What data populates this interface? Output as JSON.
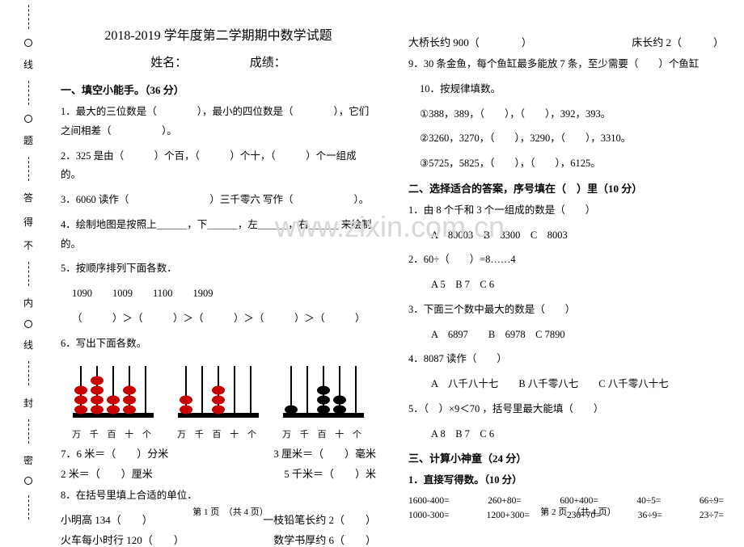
{
  "binding": {
    "chars": [
      "线",
      "题",
      "答",
      "得",
      "不",
      "内",
      "线",
      "封",
      "密"
    ]
  },
  "title": "2018-2019 学年度第二学期期中数学试题",
  "subtitle_name": "姓名：",
  "subtitle_score": "成绩：",
  "section1": "一、填空小能手。（36 分）",
  "q1": "1．最大的三位数是（　　　　），最小的四位数是（　　　　），它们之间相差（　　　　　）。",
  "q2": "2．325 是由（　　　）个百，（　　　）个十，（　　　）个一组成的。",
  "q3": "3．6060 读作（　　　　　　　　）三千零六 写作（　　　　　　）。",
  "q4": "4．绘制地图是按照上＿＿＿，下＿＿＿，左＿＿＿，右＿＿＿ 来绘制的。",
  "q5": "5．按顺序排列下面各数．",
  "q5nums": "1090　　1009　　1100　　1909",
  "q5cmp": "（　　　）＞（　　　）＞（　　　）＞（　　　）＞（　　　）",
  "q6": "6．写出下面各数。",
  "abacus_label": "万 千 百 十 个",
  "q7a": "7．6 米＝（　　）分米",
  "q7b": "3 厘米＝（　　）毫米",
  "q7c": "2 米＝（　　）厘米",
  "q7d": "5 千米＝（　　）米",
  "q8": "8．在括号里填上合适的单位．",
  "q8a": "小明高 134（　　）",
  "q8b": "一枝铅笔长约 2（　　）",
  "q8c": "火车每小时行 120（　　）",
  "q8d": "数学书厚约 6（　　）",
  "footer1": "第 1 页　（共 4 页）",
  "q8e": "大桥长约 900（　　　　）",
  "q8f": "床长约 2（　　　）",
  "q9": "9．30 条金鱼，每个鱼缸最多能放 7 条，至少需要（　　）个鱼缸",
  "q10": "10．按规律填数。",
  "q10a": "①388，389，（　　），（　　），392，393。",
  "q10b": "②3260，3270，（　　），3290，（　　），3310。",
  "q10c": "③5725，5825，（　　），（　　），6125。",
  "section2": "二、选择适合的答案，序号填在（　）里（10 分）",
  "s2q1": "1．由 8 个千和 3 个一组成的数是（　　）",
  "s2q1opt": "A　80003　B　8300　C　8003",
  "s2q2": "2．60÷（　　）=8……4",
  "s2q2opt": "A 5　B 7　C 6",
  "s2q3": "3．下面三个数中最大的数是（　　）",
  "s2q3opt": "A　6897　　B　6978　C 7890",
  "s2q4": "4．8087 读作（　　）",
  "s2q4opt": "A　八千八十七　　B 八千零八七　　C 八千零八十七",
  "s2q5": "5．（　）×9＜70 ，括号里最大能填（　　）",
  "s2q5opt": "A 8　B 7　C 6",
  "section3": "三、计算小神童（24 分）",
  "section3a": "1．直接写得数。（10 分）",
  "calc_r1": [
    "1600-400=",
    "260+80=",
    "600+400=",
    "40÷5=",
    "66÷9="
  ],
  "calc_r2": [
    "1000-300=",
    "1200+300=",
    "230+70=",
    "36÷9=",
    "23÷7="
  ],
  "footer2": "第 2 页　（共 4 页）",
  "watermark": "www.zixin.com.cn",
  "abacus1": {
    "beads": [
      3,
      4,
      2,
      3,
      0
    ],
    "colors": [
      "#c80000",
      "#c80000",
      "#c80000",
      "#c80000",
      "#c80000"
    ]
  },
  "abacus2": {
    "beads": [
      2,
      0,
      3,
      0,
      0
    ],
    "colors": [
      "#c80000",
      "#c80000",
      "#c80000",
      "#c80000",
      "#c80000"
    ]
  },
  "abacus3": {
    "beads": [
      1,
      0,
      3,
      2,
      0
    ],
    "colors": [
      "#000000",
      "#000000",
      "#000000",
      "#000000",
      "#000000"
    ]
  }
}
